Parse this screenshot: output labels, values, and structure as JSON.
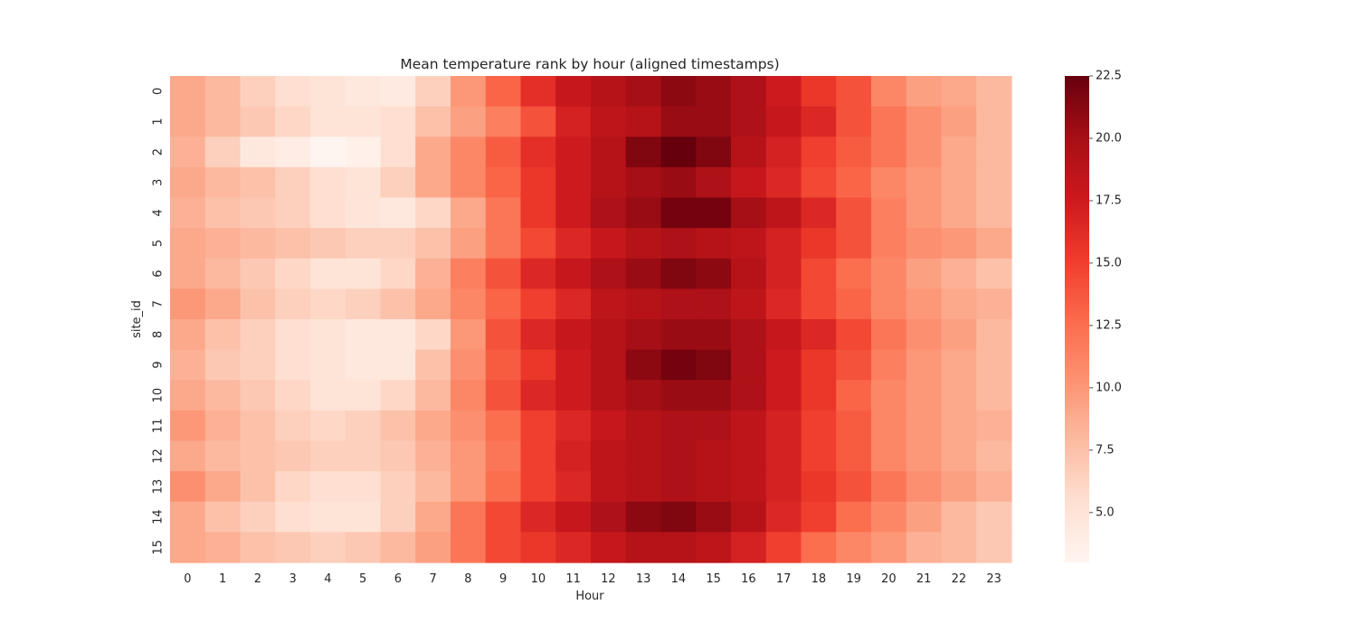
{
  "chart_data": {
    "type": "heatmap",
    "title": "Mean temperature rank by hour (aligned timestamps)",
    "xlabel": "Hour",
    "ylabel": "site_id",
    "x": [
      "0",
      "1",
      "2",
      "3",
      "4",
      "5",
      "6",
      "7",
      "8",
      "9",
      "10",
      "11",
      "12",
      "13",
      "14",
      "15",
      "16",
      "17",
      "18",
      "19",
      "20",
      "21",
      "22",
      "23"
    ],
    "y": [
      "0",
      "1",
      "2",
      "3",
      "4",
      "5",
      "6",
      "7",
      "8",
      "9",
      "10",
      "11",
      "12",
      "13",
      "14",
      "15"
    ],
    "colormap": "Reds",
    "vmin": 3.0,
    "vmax": 22.5,
    "colorbar_ticks": [
      "5.0",
      "7.5",
      "10.0",
      "12.5",
      "15.0",
      "17.5",
      "20.0",
      "22.5"
    ],
    "colorbar_tick_values": [
      5.0,
      7.5,
      10.0,
      12.5,
      15.0,
      17.5,
      20.0,
      22.5
    ],
    "values": [
      [
        9.0,
        8.0,
        6.5,
        5.5,
        5.0,
        4.5,
        4.3,
        6.5,
        10.0,
        13.0,
        16.0,
        18.0,
        19.0,
        20.0,
        21.0,
        20.5,
        19.5,
        17.5,
        15.5,
        14.0,
        11.0,
        9.5,
        9.0,
        8.0
      ],
      [
        9.0,
        8.0,
        7.0,
        6.0,
        5.0,
        5.0,
        5.5,
        7.5,
        9.5,
        11.5,
        14.0,
        17.0,
        18.5,
        19.0,
        20.5,
        20.5,
        19.5,
        18.0,
        16.5,
        14.0,
        12.0,
        10.5,
        9.5,
        8.0
      ],
      [
        8.5,
        6.5,
        4.5,
        4.0,
        3.0,
        3.5,
        5.5,
        9.0,
        11.0,
        13.5,
        16.0,
        17.5,
        19.0,
        21.5,
        22.5,
        21.5,
        19.0,
        17.0,
        15.0,
        13.5,
        12.0,
        10.5,
        9.0,
        8.0
      ],
      [
        9.0,
        8.0,
        7.5,
        6.5,
        5.5,
        5.0,
        6.5,
        9.0,
        11.0,
        13.0,
        15.5,
        17.5,
        19.0,
        20.0,
        20.5,
        19.5,
        18.0,
        16.5,
        14.5,
        13.0,
        11.0,
        10.0,
        9.0,
        8.0
      ],
      [
        8.5,
        7.5,
        7.0,
        6.5,
        5.5,
        4.8,
        4.5,
        6.0,
        9.0,
        12.0,
        15.5,
        17.5,
        19.5,
        20.5,
        22.0,
        22.0,
        20.0,
        18.5,
        16.5,
        14.0,
        11.5,
        10.0,
        9.0,
        8.0
      ],
      [
        9.0,
        8.5,
        8.0,
        7.5,
        7.0,
        6.5,
        6.5,
        7.5,
        9.5,
        12.0,
        14.5,
        16.5,
        18.0,
        19.0,
        19.5,
        19.0,
        18.5,
        17.0,
        15.5,
        14.0,
        11.5,
        10.5,
        10.0,
        9.0
      ],
      [
        9.0,
        8.0,
        7.0,
        6.0,
        5.0,
        5.0,
        6.0,
        8.5,
        11.5,
        14.0,
        16.5,
        18.0,
        19.5,
        20.5,
        21.5,
        21.0,
        19.0,
        17.0,
        14.5,
        12.5,
        11.0,
        9.5,
        8.5,
        7.5
      ],
      [
        10.0,
        9.0,
        7.5,
        6.5,
        6.0,
        6.5,
        7.5,
        9.0,
        11.0,
        13.0,
        15.0,
        16.5,
        18.5,
        19.0,
        19.5,
        19.5,
        18.5,
        16.5,
        14.5,
        13.0,
        11.0,
        10.0,
        9.0,
        8.5
      ],
      [
        9.0,
        7.5,
        6.5,
        5.5,
        5.0,
        4.5,
        4.5,
        6.0,
        10.0,
        14.0,
        16.5,
        18.0,
        19.0,
        20.0,
        20.5,
        20.5,
        19.5,
        18.0,
        16.5,
        14.5,
        12.0,
        10.5,
        9.5,
        8.0
      ],
      [
        8.5,
        7.0,
        6.5,
        5.5,
        5.0,
        4.5,
        4.5,
        7.5,
        10.5,
        13.5,
        15.5,
        17.5,
        19.0,
        21.0,
        22.0,
        21.5,
        19.5,
        17.5,
        15.5,
        14.0,
        11.5,
        10.0,
        9.0,
        8.0
      ],
      [
        9.0,
        8.0,
        7.0,
        6.0,
        5.0,
        5.0,
        6.0,
        8.0,
        11.0,
        14.0,
        16.5,
        17.5,
        19.0,
        20.0,
        20.5,
        20.5,
        19.5,
        17.5,
        15.5,
        13.0,
        11.0,
        10.0,
        9.0,
        8.0
      ],
      [
        10.0,
        8.5,
        7.5,
        6.5,
        6.0,
        6.5,
        7.5,
        9.0,
        10.5,
        12.5,
        15.0,
        16.5,
        18.0,
        19.0,
        19.5,
        19.5,
        18.5,
        17.0,
        15.0,
        13.5,
        11.0,
        10.0,
        9.0,
        8.5
      ],
      [
        9.0,
        8.0,
        7.5,
        7.0,
        6.5,
        6.5,
        7.0,
        8.5,
        10.0,
        12.0,
        15.0,
        17.0,
        18.5,
        19.0,
        19.5,
        19.0,
        18.5,
        17.0,
        15.0,
        13.5,
        11.0,
        10.0,
        9.0,
        8.0
      ],
      [
        10.5,
        9.0,
        7.5,
        6.0,
        5.5,
        5.5,
        6.5,
        8.0,
        10.0,
        12.5,
        15.0,
        16.5,
        18.5,
        19.0,
        19.5,
        19.0,
        18.5,
        17.0,
        15.5,
        14.0,
        12.0,
        10.5,
        9.5,
        8.5
      ],
      [
        9.0,
        7.5,
        6.5,
        5.5,
        5.0,
        5.0,
        6.5,
        9.0,
        12.0,
        14.5,
        16.5,
        18.0,
        19.5,
        21.0,
        21.5,
        20.5,
        19.0,
        16.5,
        15.0,
        12.5,
        11.0,
        9.5,
        8.0,
        7.0
      ],
      [
        9.0,
        8.5,
        7.5,
        7.0,
        6.5,
        7.0,
        8.0,
        9.5,
        12.0,
        14.5,
        15.5,
        16.5,
        18.0,
        19.0,
        19.0,
        18.5,
        17.0,
        15.0,
        12.5,
        11.0,
        10.0,
        8.5,
        8.0,
        7.0
      ]
    ]
  }
}
